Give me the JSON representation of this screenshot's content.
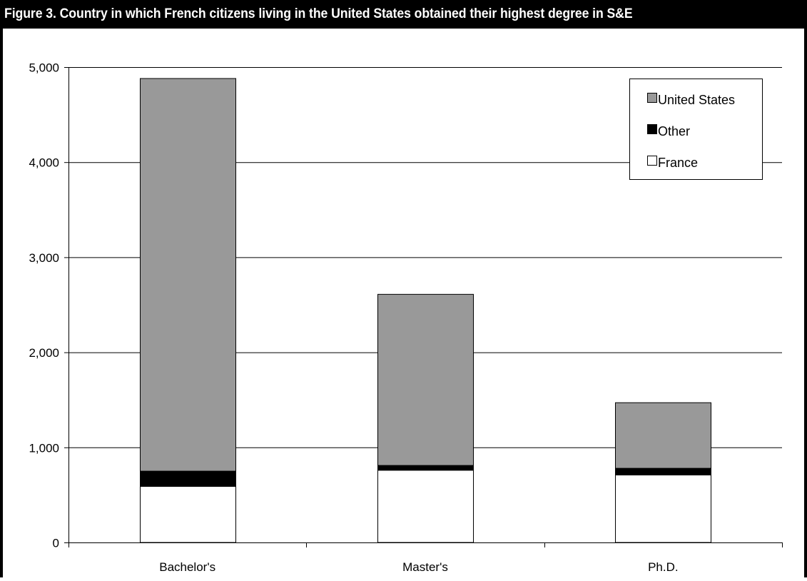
{
  "figure": {
    "title": "Figure 3. Country in which French citizens living in the United States obtained their highest degree in S&E"
  },
  "colors": {
    "united_states": "#999999",
    "other": "#000000",
    "france": "#ffffff",
    "title_bar": "#000000"
  },
  "chart_data": {
    "type": "bar",
    "stacked": true,
    "title": "Figure 3. Country in which French citizens living in the United States obtained their highest degree in S&E",
    "categories": [
      "Bachelor's",
      "Master's",
      "Ph.D."
    ],
    "series": [
      {
        "name": "France",
        "values": [
          590,
          760,
          710
        ],
        "color": "#ffffff"
      },
      {
        "name": "Other",
        "values": [
          160,
          50,
          70
        ],
        "color": "#000000"
      },
      {
        "name": "United States",
        "values": [
          4130,
          1800,
          690
        ],
        "color": "#999999"
      }
    ],
    "ylim": [
      0,
      5000
    ],
    "yticks": [
      "0",
      "1,000",
      "2,000",
      "3,000",
      "4,000",
      "5,000"
    ],
    "ytick_values": [
      0,
      1000,
      2000,
      3000,
      4000,
      5000
    ],
    "grid": true,
    "legend": {
      "position": "top-right",
      "entries": [
        "United States",
        "Other",
        "France"
      ]
    },
    "xlabel": "",
    "ylabel": ""
  }
}
